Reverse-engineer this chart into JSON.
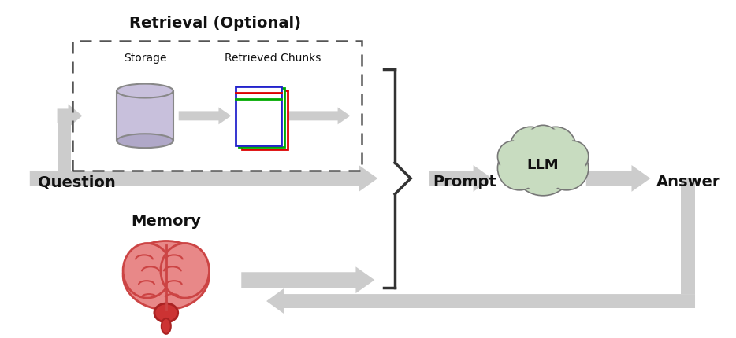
{
  "bg_color": "#ffffff",
  "title_retrieval": "Retrieval (Optional)",
  "label_storage": "Storage",
  "label_chunks": "Retrieved Chunks",
  "label_question": "Question",
  "label_prompt": "Prompt",
  "label_llm": "LLM",
  "label_answer": "Answer",
  "label_memory": "Memory",
  "arrow_color": "#cccccc",
  "dashed_box_color": "#555555",
  "cylinder_color": "#c8c0dc",
  "cylinder_edge": "#888888",
  "cloud_color": "#c8dcc0",
  "cloud_edge": "#777777",
  "brain_color_main": "#e88888",
  "text_color": "#111111"
}
